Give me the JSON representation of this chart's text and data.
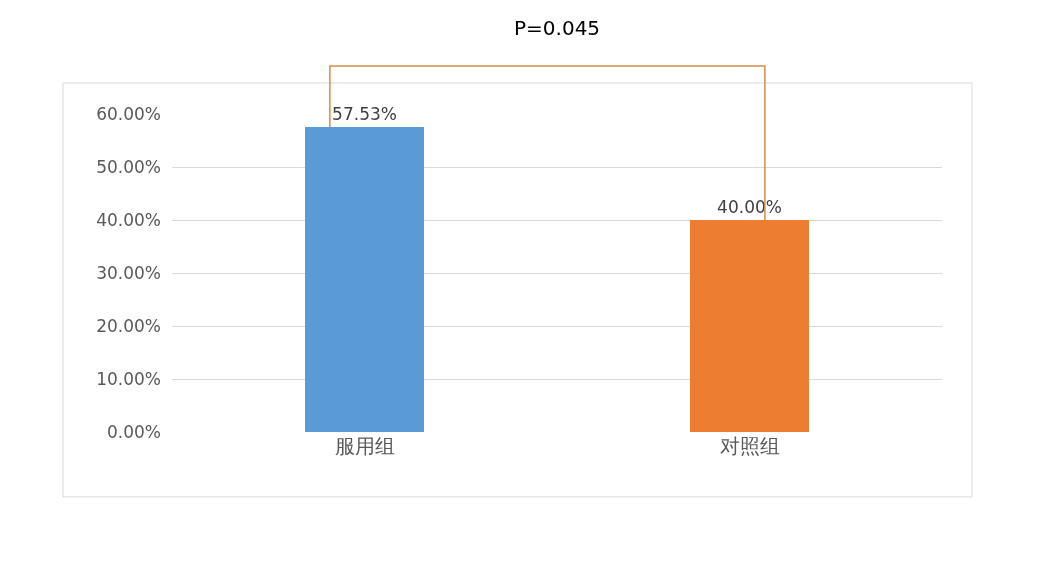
{
  "chart_data": {
    "type": "bar",
    "categories": [
      "服用组",
      "对照组"
    ],
    "values": [
      57.53,
      40.0
    ],
    "colors": [
      "#5b9bd5",
      "#ed7d31"
    ],
    "value_labels": [
      "57.53%",
      "40.00%"
    ],
    "ylim": [
      0,
      60
    ],
    "yticks": [
      {
        "value": 0,
        "label": "0.00%"
      },
      {
        "value": 10,
        "label": "10.00%"
      },
      {
        "value": 20,
        "label": "20.00%"
      },
      {
        "value": 30,
        "label": "30.00%"
      },
      {
        "value": 40,
        "label": "40.00%"
      },
      {
        "value": 50,
        "label": "50.00%"
      },
      {
        "value": 60,
        "label": "60.00%"
      }
    ],
    "grid": "y",
    "annotations": [
      "P=0.045"
    ]
  }
}
